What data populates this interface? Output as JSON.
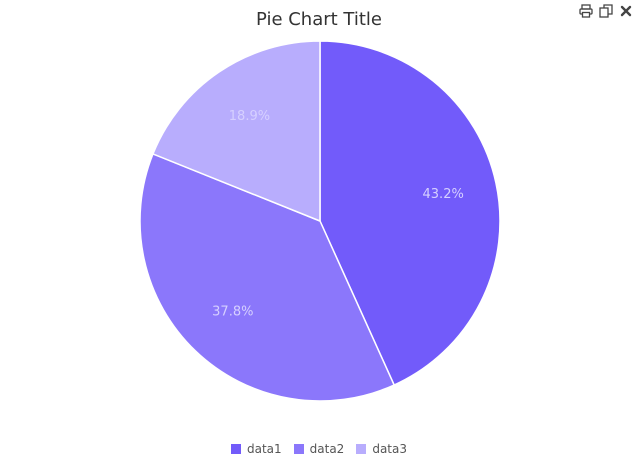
{
  "chart_data": {
    "type": "pie",
    "title": "Pie Chart Title",
    "legend_placement": "bottom",
    "slices": [
      {
        "name": "data1",
        "percent": 43.2,
        "label": "43.2%",
        "color": "#725bfa"
      },
      {
        "name": "data2",
        "percent": 37.8,
        "label": "37.8%",
        "color": "#8b77fb"
      },
      {
        "name": "data3",
        "percent": 18.9,
        "label": "18.9%",
        "color": "#b8adfd"
      }
    ]
  },
  "toolbar": {
    "icons": [
      "print-icon",
      "copy-icon",
      "close-icon"
    ]
  }
}
